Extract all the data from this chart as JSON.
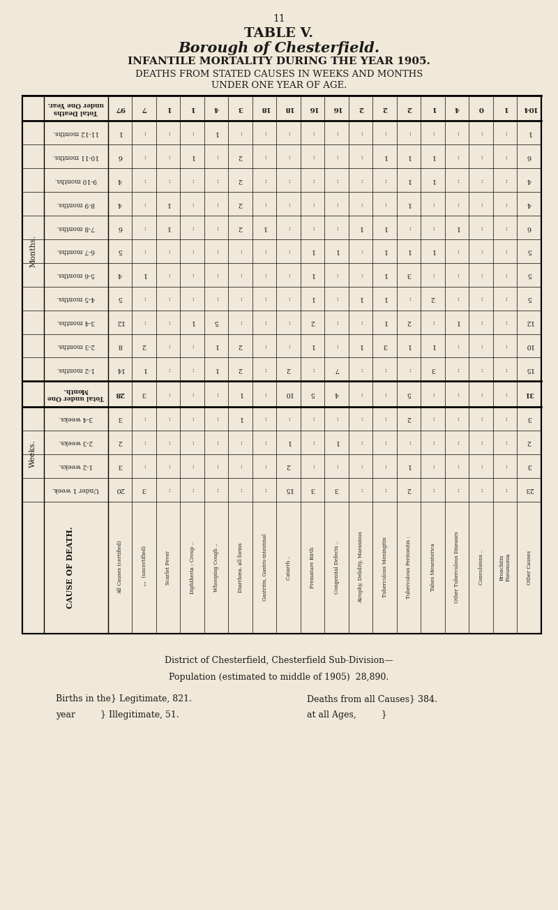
{
  "page_number": "11",
  "title1": "TABLE V.",
  "title2": "Borough of Chesterfield.",
  "title3": "INFANTILE MORTALITY DURING THE YEAR 1905.",
  "title4": "DEATHS FROM STATED CAUSES IN WEEKS AND MONTHS",
  "title5": "UNDER ONE YEAR OF AGE.",
  "bg_color": "#f0e8d8",
  "text_color": "#1a1a1a",
  "footer1": "District of Chesterfield, Chesterfield Sub-Division—",
  "footer2": "Population (estimated to middle of 1905)  28,890.",
  "footer3a": "Births in the} Legitimate, 821.",
  "footer3b": "Deaths from all Causes} 384.",
  "footer4a": "year       } Illegitimate, 51.",
  "footer4b": "at all Ages,         }",
  "col_headers_rotated": [
    "All Causes (certified)",
    "  (uncertified)",
    "Scarlet Fever",
    "Diphtheria : Croup ..",
    "Whooping Cough ..",
    "Diarrhœa, all forms",
    "Gastritis, Gastro-intestinal",
    "    Catarrh ..",
    "Premature Birth",
    "Congenital Defects ..",
    "Atrophy, Debility, Marasmus",
    "Tuberculous Meningitis",
    "Tuberculous Peritonitis :",
    "    Tabes Mesenterica",
    "Other Tuberculous Diseases",
    "Convulsions ..",
    "Bronchitis",
    "Pneumonia",
    "Other Causes"
  ],
  "row_labels_left": [
    "Total Deaths\\nunder One Year.",
    "11-12 months.",
    "10-11 months.",
    "9-10 months.",
    "8-9 months.",
    "7-8 months.",
    "6-7 months.",
    "5-6 months.",
    "4-5 months.",
    "3-4 months.",
    "2-3 months.",
    "1-2 months.",
    "Total under One\\nMonth.",
    "3-4 weeks.",
    "2-3 weeks.",
    "1-2 weeks.",
    "Under 1 week."
  ],
  "section_labels": [
    "Months.",
    "Weeks."
  ],
  "table_data": [
    [
      "97",
      "7",
      "1",
      "1",
      "4",
      "3",
      "18",
      "18",
      "16",
      "16",
      "2",
      "2",
      "2",
      "1",
      "4",
      "0",
      "1",
      "104"
    ],
    [
      "1",
      ":",
      ":",
      ":",
      "1",
      ":",
      ":",
      ":",
      ":",
      ":",
      ":",
      ":",
      ":",
      ":",
      ":",
      ":",
      ":",
      "1"
    ],
    [
      "6",
      ":",
      ":",
      "1",
      ":",
      "2",
      ":",
      ":",
      ":",
      ":",
      ":",
      "1",
      "1",
      "1",
      ":",
      ":",
      ":",
      "6"
    ],
    [
      "4",
      ":",
      ":",
      ":",
      ":",
      "2",
      ":",
      ":",
      ":",
      ":",
      ":",
      ":",
      "1",
      "1",
      ":",
      ":",
      ":",
      "4"
    ],
    [
      "4",
      ":",
      "1",
      ":",
      ":",
      "2",
      ":",
      ":",
      ":",
      ":",
      ":",
      ":",
      "1",
      ":",
      ":",
      ":",
      ":",
      "4"
    ],
    [
      "6",
      ":",
      "1",
      ":",
      ":",
      "2",
      "1",
      ":",
      ":",
      ":",
      "1",
      "1",
      ":",
      ":",
      "1",
      ":",
      ":",
      "6"
    ],
    [
      "5",
      ":",
      ":",
      ":",
      ":",
      ":",
      ":",
      ":",
      "1",
      "1",
      ":",
      "1",
      "1",
      "1",
      ":",
      ":",
      ":",
      "5"
    ],
    [
      "4",
      "1",
      ":",
      ":",
      ":",
      ":",
      ":",
      ":",
      "1",
      ":",
      ":",
      "1",
      "3",
      ":",
      ":",
      ":",
      ":",
      "5"
    ],
    [
      "5",
      ":",
      ":",
      ":",
      ":",
      ":",
      ":",
      ":",
      "1",
      ":",
      "1",
      "1",
      ":",
      "2",
      ":",
      ":",
      ":",
      "5"
    ],
    [
      "12",
      ":",
      ":",
      "1",
      "5",
      ":",
      ":",
      ":",
      "2",
      ":",
      ":",
      "1",
      "2",
      ":",
      "1",
      ":",
      ":",
      "12"
    ],
    [
      "8",
      "2",
      ":",
      ":",
      "1",
      "2",
      ":",
      ":",
      "1",
      ":",
      "1",
      "3",
      "1",
      "1",
      ":",
      ":",
      ":",
      "10"
    ],
    [
      "14",
      "1",
      ":",
      ":",
      "1",
      "2",
      ":",
      "2",
      ":",
      "7",
      ":",
      ":",
      ":",
      "3",
      ":",
      ":",
      ":",
      "15"
    ],
    [
      "28",
      "3",
      ":",
      ":",
      ":",
      "1",
      ":",
      "10",
      "5",
      "4",
      ":",
      ":",
      "5",
      ":",
      ":",
      ":",
      ":",
      "31"
    ],
    [
      "3",
      ":",
      ":",
      ":",
      ":",
      "1",
      ":",
      ":",
      ":",
      ":",
      ":",
      ":",
      "2",
      ":",
      ":",
      ":",
      ":",
      "3"
    ],
    [
      "2",
      ":",
      ":",
      ":",
      ":",
      ":",
      ":",
      "1",
      ":",
      "1",
      ":",
      ":",
      ":",
      ":",
      ":",
      ":",
      ":",
      "2"
    ],
    [
      "3",
      ":",
      ":",
      ":",
      ":",
      ":",
      ":",
      "2",
      ":",
      ":",
      ":",
      ":",
      "1",
      ":",
      ":",
      ":",
      ":",
      "3"
    ],
    [
      "20",
      "3",
      ":",
      ":",
      ":",
      ":",
      ":",
      "15",
      "3",
      "3",
      ":",
      ":",
      "2",
      ":",
      ":",
      ":",
      ":",
      "23"
    ]
  ]
}
